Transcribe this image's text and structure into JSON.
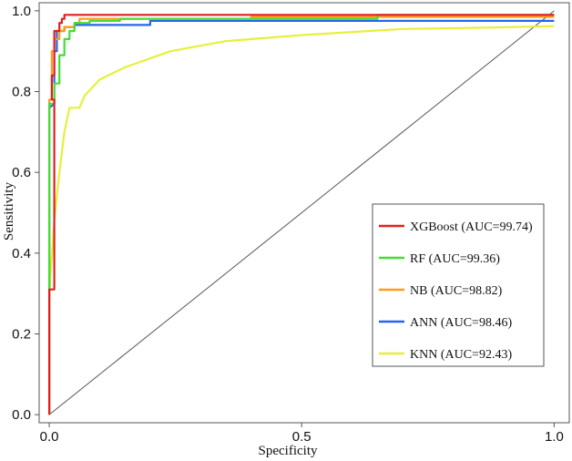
{
  "chart_data": {
    "type": "line",
    "title": "",
    "xlabel": "Specificity",
    "ylabel": "Sensitivity",
    "xlim": [
      -0.02,
      1.03
    ],
    "ylim": [
      -0.02,
      1.02
    ],
    "x_ticks": [
      {
        "value": 0.0,
        "label": "0.0"
      },
      {
        "value": 0.5,
        "label": "0.5"
      },
      {
        "value": 1.0,
        "label": "1.0"
      }
    ],
    "y_ticks": [
      {
        "value": 0.0,
        "label": "0.0"
      },
      {
        "value": 0.2,
        "label": "0.2"
      },
      {
        "value": 0.4,
        "label": "0.4"
      },
      {
        "value": 0.6,
        "label": "0.6"
      },
      {
        "value": 0.8,
        "label": "0.8"
      },
      {
        "value": 1.0,
        "label": "1.0"
      }
    ],
    "diagonal": {
      "points": [
        [
          0,
          0
        ],
        [
          1,
          1
        ]
      ],
      "color": "#555555"
    },
    "legend_position": "center-right",
    "series": [
      {
        "name": "XGBoost (AUC=99.74)",
        "color": "#e02020",
        "points": [
          [
            0,
            0
          ],
          [
            0,
            0.31
          ],
          [
            0.01,
            0.31
          ],
          [
            0.01,
            0.78
          ],
          [
            0.005,
            0.78
          ],
          [
            0.005,
            0.84
          ],
          [
            0.01,
            0.84
          ],
          [
            0.01,
            0.95
          ],
          [
            0.02,
            0.95
          ],
          [
            0.02,
            0.97
          ],
          [
            0.025,
            0.97
          ],
          [
            0.025,
            0.98
          ],
          [
            0.03,
            0.98
          ],
          [
            0.03,
            0.99
          ],
          [
            1.0,
            0.99
          ]
        ]
      },
      {
        "name": "RF (AUC=99.36)",
        "color": "#44dd33",
        "points": [
          [
            0,
            0
          ],
          [
            0,
            0.77
          ],
          [
            0.01,
            0.77
          ],
          [
            0.01,
            0.82
          ],
          [
            0.02,
            0.82
          ],
          [
            0.02,
            0.89
          ],
          [
            0.03,
            0.89
          ],
          [
            0.03,
            0.93
          ],
          [
            0.04,
            0.93
          ],
          [
            0.04,
            0.95
          ],
          [
            0.05,
            0.95
          ],
          [
            0.05,
            0.97
          ],
          [
            0.08,
            0.97
          ],
          [
            0.08,
            0.975
          ],
          [
            0.14,
            0.975
          ],
          [
            0.14,
            0.98
          ],
          [
            0.65,
            0.98
          ],
          [
            0.65,
            0.99
          ],
          [
            1.0,
            0.99
          ]
        ]
      },
      {
        "name": "NB (AUC=98.82)",
        "color": "#ff9a1a",
        "points": [
          [
            0,
            0
          ],
          [
            0,
            0.78
          ],
          [
            0.005,
            0.78
          ],
          [
            0.005,
            0.9
          ],
          [
            0.01,
            0.9
          ],
          [
            0.01,
            0.93
          ],
          [
            0.02,
            0.93
          ],
          [
            0.02,
            0.95
          ],
          [
            0.03,
            0.95
          ],
          [
            0.03,
            0.96
          ],
          [
            0.05,
            0.96
          ],
          [
            0.05,
            0.97
          ],
          [
            0.06,
            0.97
          ],
          [
            0.06,
            0.98
          ],
          [
            0.4,
            0.98
          ],
          [
            0.4,
            0.985
          ],
          [
            1.0,
            0.985
          ]
        ]
      },
      {
        "name": "ANN (AUC=98.46)",
        "color": "#2266ee",
        "points": [
          [
            0,
            0
          ],
          [
            0,
            0.76
          ],
          [
            0.01,
            0.77
          ],
          [
            0.01,
            0.9
          ],
          [
            0.015,
            0.9
          ],
          [
            0.015,
            0.95
          ],
          [
            0.03,
            0.95
          ],
          [
            0.03,
            0.96
          ],
          [
            0.05,
            0.96
          ],
          [
            0.05,
            0.965
          ],
          [
            0.2,
            0.965
          ],
          [
            0.2,
            0.975
          ],
          [
            1.0,
            0.975
          ]
        ]
      },
      {
        "name": "KNN (AUC=92.43)",
        "color": "#e6f03a",
        "points": [
          [
            0,
            0
          ],
          [
            0,
            0.3
          ],
          [
            0.01,
            0.48
          ],
          [
            0.02,
            0.6
          ],
          [
            0.03,
            0.7
          ],
          [
            0.04,
            0.76
          ],
          [
            0.06,
            0.76
          ],
          [
            0.07,
            0.79
          ],
          [
            0.1,
            0.83
          ],
          [
            0.15,
            0.86
          ],
          [
            0.24,
            0.9
          ],
          [
            0.35,
            0.925
          ],
          [
            0.5,
            0.94
          ],
          [
            0.7,
            0.955
          ],
          [
            0.85,
            0.958
          ],
          [
            1.0,
            0.962
          ]
        ]
      }
    ]
  }
}
